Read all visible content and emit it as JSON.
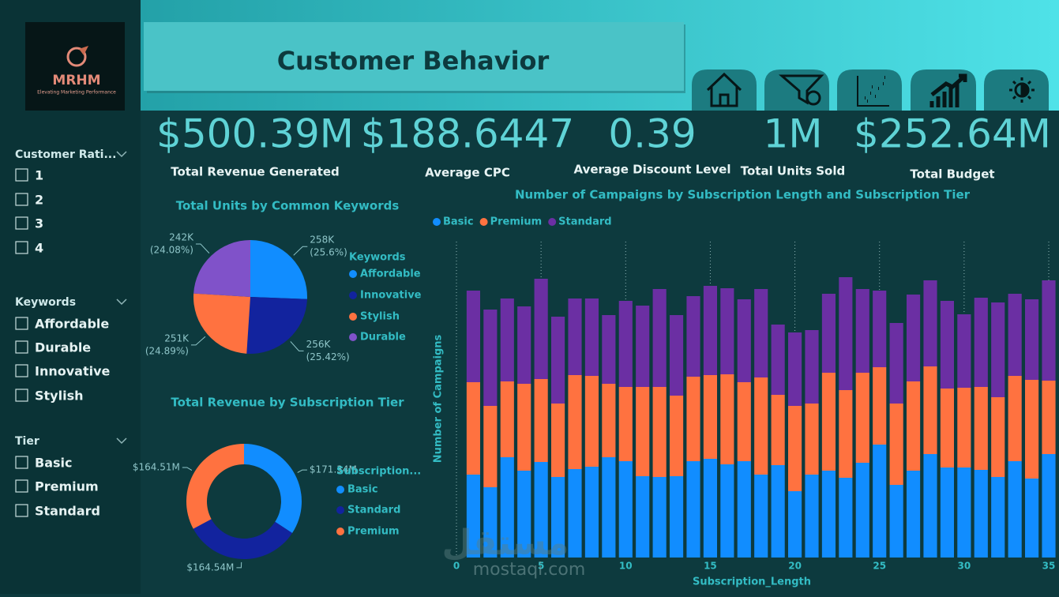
{
  "header": {
    "logo": "MRHM",
    "tagline": "Elevating Marketing Performance",
    "title": "Customer Behavior"
  },
  "filters": [
    {
      "title": "Customer Rati...",
      "options": [
        "1",
        "2",
        "3",
        "4"
      ]
    },
    {
      "title": "Keywords",
      "options": [
        "Affordable",
        "Durable",
        "Innovative",
        "Stylish"
      ]
    },
    {
      "title": "Tier",
      "options": [
        "Basic",
        "Premium",
        "Standard"
      ]
    }
  ],
  "kpis": [
    {
      "value": "$500.39M",
      "label": "Total Revenue Generated"
    },
    {
      "value": "$188.6447",
      "label": "Average CPC"
    },
    {
      "value": "0.39",
      "label": "Average Discount Level"
    },
    {
      "value": "1M",
      "label": "Total Units Sold"
    },
    {
      "value": "$252.64M",
      "label": "Total Budget"
    }
  ],
  "watermark": {
    "arabic": "مستقل",
    "latin": "mostaqi.com"
  },
  "chart_data": [
    {
      "type": "pie",
      "title": "Total Units by Common Keywords",
      "legend_title": "Keywords",
      "categories": [
        "Affordable",
        "Innovative",
        "Stylish",
        "Durable"
      ],
      "values": [
        258,
        256,
        251,
        242
      ],
      "value_labels": [
        "258K",
        "256K",
        "251K",
        "242K"
      ],
      "percents": [
        25.6,
        25.42,
        24.89,
        24.08
      ],
      "percent_labels": [
        "(25.6%)",
        "(25.42%)",
        "(24.89%)",
        "(24.08%)"
      ],
      "colors": [
        "#118dff",
        "#12239e",
        "#ff7240",
        "#8052c9"
      ]
    },
    {
      "type": "donut",
      "title": "Total Revenue by Subscription Tier",
      "legend_title": "Subscription...",
      "categories": [
        "Basic",
        "Standard",
        "Premium"
      ],
      "values": [
        171.34,
        164.54,
        164.51
      ],
      "value_labels": [
        "$171.34M",
        "$164.54M",
        "$164.51M"
      ],
      "colors": [
        "#118dff",
        "#12239e",
        "#ff7240"
      ]
    },
    {
      "type": "stacked_bar",
      "title": "Number of Campaigns by Subscription Length and Subscription Tier",
      "x_label": "Subscription_Length",
      "y_label": "Number of Campaigns",
      "x": [
        1,
        2,
        3,
        4,
        5,
        6,
        7,
        8,
        9,
        10,
        11,
        12,
        13,
        14,
        15,
        16,
        17,
        18,
        19,
        20,
        21,
        22,
        23,
        24,
        25,
        26,
        27,
        28,
        29,
        30,
        31,
        32,
        33,
        34,
        35
      ],
      "xlim": [
        0,
        35
      ],
      "xticks": [
        0,
        5,
        10,
        15,
        20,
        25,
        30,
        35
      ],
      "ylim": [
        0,
        400
      ],
      "grid": true,
      "series": [
        {
          "name": "Basic",
          "color": "#118dff",
          "values": [
            105,
            89,
            127,
            110,
            121,
            102,
            112,
            115,
            127,
            122,
            103,
            102,
            103,
            122,
            125,
            118,
            122,
            105,
            117,
            84,
            105,
            110,
            101,
            120,
            143,
            92,
            110,
            131,
            114,
            114,
            111,
            102,
            122,
            100,
            131
          ]
        },
        {
          "name": "Premium",
          "color": "#ff7240",
          "values": [
            117,
            103,
            96,
            110,
            105,
            93,
            119,
            115,
            93,
            94,
            113,
            114,
            102,
            107,
            106,
            114,
            100,
            123,
            89,
            108,
            90,
            124,
            111,
            114,
            98,
            103,
            113,
            111,
            100,
            101,
            105,
            101,
            108,
            125,
            93
          ]
        },
        {
          "name": "Standard",
          "color": "#6b2fa3",
          "values": [
            116,
            122,
            105,
            98,
            127,
            110,
            97,
            98,
            87,
            109,
            103,
            124,
            102,
            102,
            113,
            109,
            105,
            112,
            89,
            93,
            93,
            100,
            143,
            106,
            97,
            102,
            110,
            109,
            111,
            93,
            113,
            120,
            104,
            102,
            127
          ]
        }
      ]
    }
  ]
}
